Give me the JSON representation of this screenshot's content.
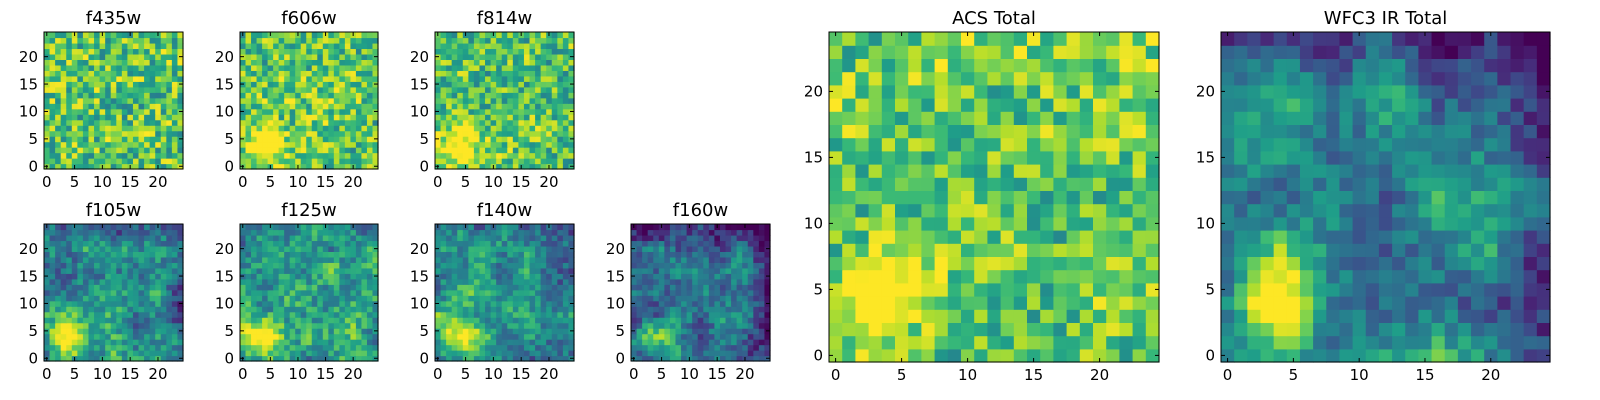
{
  "chart_data": [
    {
      "type": "heatmap",
      "title": "f435w",
      "colormap": "viridis",
      "extent": [
        0,
        25,
        0,
        25
      ],
      "xticks": [
        0,
        5,
        10,
        15,
        20
      ],
      "yticks": [
        0,
        5,
        10,
        15,
        20
      ],
      "grid_size": 25,
      "bright_spot": null,
      "base_level": 0.72,
      "noise_level": 0.55,
      "cool_edge": 0.0
    },
    {
      "type": "heatmap",
      "title": "f606w",
      "colormap": "viridis",
      "extent": [
        0,
        25,
        0,
        25
      ],
      "xticks": [
        0,
        5,
        10,
        15,
        20
      ],
      "yticks": [
        0,
        5,
        10,
        15,
        20
      ],
      "grid_size": 25,
      "bright_spot": [
        4,
        4
      ],
      "base_level": 0.72,
      "noise_level": 0.5,
      "cool_edge": 0.0
    },
    {
      "type": "heatmap",
      "title": "f814w",
      "colormap": "viridis",
      "extent": [
        0,
        25,
        0,
        25
      ],
      "xticks": [
        0,
        5,
        10,
        15,
        20
      ],
      "yticks": [
        0,
        5,
        10,
        15,
        20
      ],
      "grid_size": 25,
      "bright_spot": [
        4,
        4
      ],
      "base_level": 0.7,
      "noise_level": 0.5,
      "cool_edge": 0.0
    },
    {
      "type": "heatmap",
      "title": "f105w",
      "colormap": "viridis",
      "extent": [
        0,
        25,
        0,
        25
      ],
      "xticks": [
        0,
        5,
        10,
        15,
        20
      ],
      "yticks": [
        0,
        5,
        10,
        15,
        20
      ],
      "grid_size": 25,
      "bright_spot": [
        4,
        4
      ],
      "base_level": 0.5,
      "noise_level": 0.35,
      "cool_edge": 0.12
    },
    {
      "type": "heatmap",
      "title": "f125w",
      "colormap": "viridis",
      "extent": [
        0,
        25,
        0,
        25
      ],
      "xticks": [
        0,
        5,
        10,
        15,
        20
      ],
      "yticks": [
        0,
        5,
        10,
        15,
        20
      ],
      "grid_size": 25,
      "bright_spot": [
        4,
        4
      ],
      "base_level": 0.58,
      "noise_level": 0.35,
      "cool_edge": 0.08
    },
    {
      "type": "heatmap",
      "title": "f140w",
      "colormap": "viridis",
      "extent": [
        0,
        25,
        0,
        25
      ],
      "xticks": [
        0,
        5,
        10,
        15,
        20
      ],
      "yticks": [
        0,
        5,
        10,
        15,
        20
      ],
      "grid_size": 25,
      "bright_spot": [
        4,
        4
      ],
      "base_level": 0.52,
      "noise_level": 0.3,
      "cool_edge": 0.1
    },
    {
      "type": "heatmap",
      "title": "f160w",
      "colormap": "viridis",
      "extent": [
        0,
        25,
        0,
        25
      ],
      "xticks": [
        0,
        5,
        10,
        15,
        20
      ],
      "yticks": [
        0,
        5,
        10,
        15,
        20
      ],
      "grid_size": 25,
      "bright_spot": [
        4,
        4
      ],
      "base_level": 0.35,
      "noise_level": 0.3,
      "cool_edge": 0.2
    },
    {
      "type": "heatmap",
      "title": "ACS Total",
      "colormap": "viridis",
      "extent": [
        0,
        25,
        0,
        25
      ],
      "xticks": [
        0,
        5,
        10,
        15,
        20
      ],
      "yticks": [
        0,
        5,
        10,
        15,
        20
      ],
      "grid_size": 25,
      "bright_spot": [
        4,
        5
      ],
      "base_level": 0.74,
      "noise_level": 0.45,
      "cool_edge": 0.0
    },
    {
      "type": "heatmap",
      "title": "WFC3 IR Total",
      "colormap": "viridis",
      "extent": [
        0,
        25,
        0,
        25
      ],
      "xticks": [
        0,
        5,
        10,
        15,
        20
      ],
      "yticks": [
        0,
        5,
        10,
        15,
        20
      ],
      "grid_size": 25,
      "bright_spot": [
        4,
        4
      ],
      "base_level": 0.45,
      "noise_level": 0.25,
      "cool_edge": 0.18
    }
  ]
}
